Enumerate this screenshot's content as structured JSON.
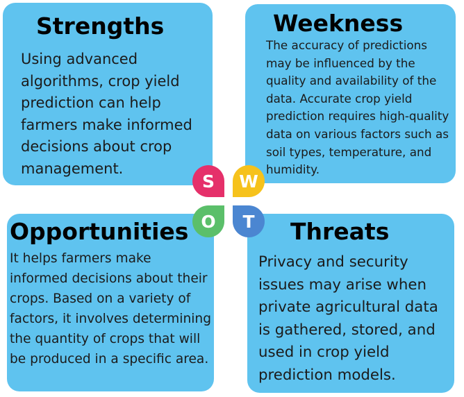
{
  "swot": {
    "strengths": {
      "title": "Strengths",
      "text": "Using advanced algorithms, crop yield prediction can help farmers make informed decisions about crop management."
    },
    "weakness": {
      "title": "Weekness",
      "text": "The accuracy of predictions may be influenced by the quality and availability of the data. Accurate crop yield prediction requires high-quality data on various factors such as soil types, temperature, and humidity."
    },
    "opportunities": {
      "title": "Opportunities",
      "text": "It helps farmers make informed decisions about their crops. Based on a variety of factors, it involves determining the quantity of crops that will be produced in a specific area."
    },
    "threats": {
      "title": "Threats",
      "text": "Privacy and security issues may arise when private agricultural data is gathered, stored, and used in crop yield prediction models."
    }
  },
  "letters": {
    "s": "S",
    "w": "W",
    "o": "O",
    "t": "T"
  },
  "colors": {
    "card": "#5fc3ef",
    "s": "#e5306a",
    "w": "#f6c21c",
    "o": "#5bbf6a",
    "t": "#4b86d1"
  }
}
